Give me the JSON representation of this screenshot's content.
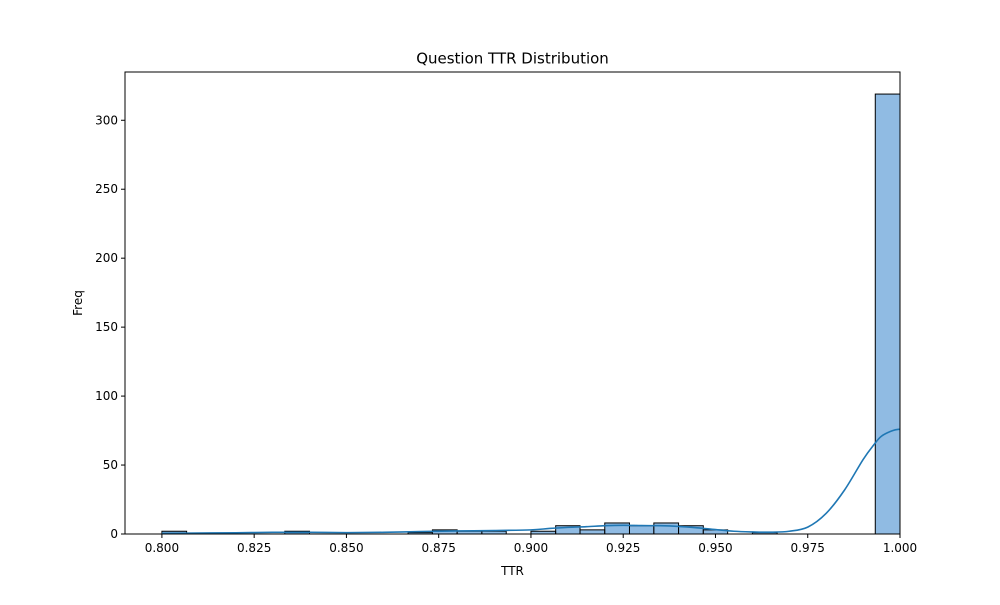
{
  "chart_data": {
    "type": "bar",
    "title": "Question TTR Distribution",
    "xlabel": "TTR",
    "ylabel": "Freq",
    "xlim": [
      0.79,
      1.0
    ],
    "ylim": [
      0,
      335
    ],
    "xticks": [
      "0.800",
      "0.825",
      "0.850",
      "0.875",
      "0.900",
      "0.925",
      "0.950",
      "0.975",
      "1.000"
    ],
    "yticks": [
      "0",
      "50",
      "100",
      "150",
      "200",
      "250",
      "300"
    ],
    "grid": false,
    "legend": "none",
    "bar_color": "#5b9bd5",
    "bar_fill_opacity": 0.68,
    "bar_edge_color": "#000000",
    "kde_color": "#1f77b4",
    "bins": [
      {
        "x0": 0.8,
        "x1": 0.8067,
        "count": 2
      },
      {
        "x0": 0.8067,
        "x1": 0.8133,
        "count": 0
      },
      {
        "x0": 0.8133,
        "x1": 0.82,
        "count": 0
      },
      {
        "x0": 0.82,
        "x1": 0.8267,
        "count": 0
      },
      {
        "x0": 0.8267,
        "x1": 0.8333,
        "count": 0
      },
      {
        "x0": 0.8333,
        "x1": 0.84,
        "count": 2
      },
      {
        "x0": 0.84,
        "x1": 0.8467,
        "count": 0
      },
      {
        "x0": 0.8467,
        "x1": 0.8533,
        "count": 0
      },
      {
        "x0": 0.8533,
        "x1": 0.86,
        "count": 0
      },
      {
        "x0": 0.86,
        "x1": 0.8667,
        "count": 0
      },
      {
        "x0": 0.8667,
        "x1": 0.8733,
        "count": 1
      },
      {
        "x0": 0.8733,
        "x1": 0.88,
        "count": 3
      },
      {
        "x0": 0.88,
        "x1": 0.8867,
        "count": 2
      },
      {
        "x0": 0.8867,
        "x1": 0.8933,
        "count": 2
      },
      {
        "x0": 0.8933,
        "x1": 0.9,
        "count": 0
      },
      {
        "x0": 0.9,
        "x1": 0.9067,
        "count": 2
      },
      {
        "x0": 0.9067,
        "x1": 0.9133,
        "count": 6
      },
      {
        "x0": 0.9133,
        "x1": 0.92,
        "count": 3
      },
      {
        "x0": 0.92,
        "x1": 0.9267,
        "count": 8
      },
      {
        "x0": 0.9267,
        "x1": 0.9333,
        "count": 6
      },
      {
        "x0": 0.9333,
        "x1": 0.94,
        "count": 8
      },
      {
        "x0": 0.94,
        "x1": 0.9467,
        "count": 6
      },
      {
        "x0": 0.9467,
        "x1": 0.9533,
        "count": 3
      },
      {
        "x0": 0.9533,
        "x1": 0.96,
        "count": 0
      },
      {
        "x0": 0.96,
        "x1": 0.9667,
        "count": 1
      },
      {
        "x0": 0.9667,
        "x1": 0.9733,
        "count": 0
      },
      {
        "x0": 0.9733,
        "x1": 0.98,
        "count": 0
      },
      {
        "x0": 0.98,
        "x1": 0.9867,
        "count": 0
      },
      {
        "x0": 0.9867,
        "x1": 0.9933,
        "count": 0
      },
      {
        "x0": 0.9933,
        "x1": 1.0,
        "count": 319
      }
    ],
    "kde": {
      "x": [
        0.8,
        0.81,
        0.82,
        0.83,
        0.84,
        0.85,
        0.86,
        0.87,
        0.88,
        0.89,
        0.9,
        0.905,
        0.91,
        0.915,
        0.92,
        0.925,
        0.93,
        0.935,
        0.94,
        0.945,
        0.95,
        0.955,
        0.96,
        0.965,
        0.97,
        0.975,
        0.98,
        0.985,
        0.99,
        0.993,
        0.995,
        0.998,
        1.0
      ],
      "y": [
        0.5,
        0.7,
        0.9,
        1.2,
        1.2,
        1.0,
        1.2,
        1.8,
        2.2,
        2.5,
        3.0,
        4.0,
        4.8,
        5.3,
        6.0,
        6.3,
        6.1,
        6.0,
        5.5,
        4.5,
        3.2,
        2.0,
        1.5,
        1.3,
        2.0,
        5.0,
        15.0,
        32.0,
        54.0,
        65.0,
        71.0,
        75.0,
        76.0
      ]
    }
  }
}
